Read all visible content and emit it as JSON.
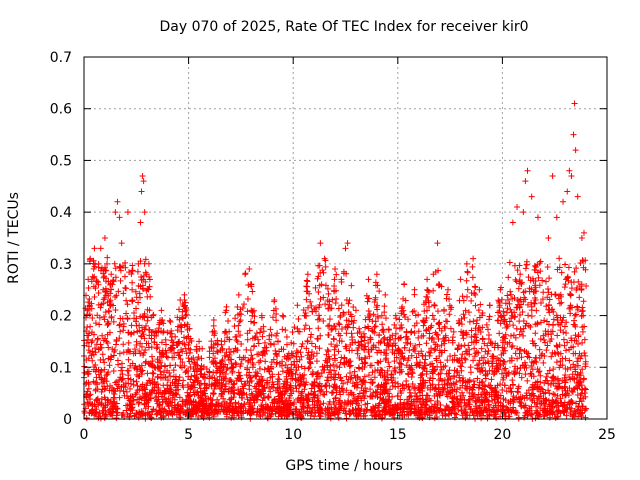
{
  "chart_data": {
    "type": "scatter",
    "title": "Day 070 of 2025, Rate Of TEC Index for receiver kir0",
    "xlabel": "GPS time / hours",
    "ylabel": "ROTI / TECUs",
    "xlim": [
      0,
      25
    ],
    "ylim": [
      0,
      0.7
    ],
    "xticks": [
      "0",
      "5",
      "10",
      "15",
      "20",
      "25"
    ],
    "yticks": [
      "0",
      "0.1",
      "0.2",
      "0.3",
      "0.4",
      "0.5",
      "0.6",
      "0.7"
    ],
    "grid": true,
    "marker": "+",
    "color": "#ff0000",
    "x_range_of_data": [
      0,
      24
    ],
    "points": [
      [
        0.0,
        0.08
      ],
      [
        0.1,
        0.17
      ],
      [
        0.2,
        0.27
      ],
      [
        0.3,
        0.31
      ],
      [
        0.5,
        0.33
      ],
      [
        0.7,
        0.3
      ],
      [
        0.8,
        0.33
      ],
      [
        1.0,
        0.35
      ],
      [
        1.1,
        0.3
      ],
      [
        1.3,
        0.28
      ],
      [
        1.5,
        0.4
      ],
      [
        1.6,
        0.42
      ],
      [
        1.7,
        0.39
      ],
      [
        1.8,
        0.34
      ],
      [
        2.1,
        0.4
      ],
      [
        2.3,
        0.25
      ],
      [
        2.6,
        0.3
      ],
      [
        2.7,
        0.38
      ],
      [
        2.75,
        0.44
      ],
      [
        2.8,
        0.47
      ],
      [
        2.85,
        0.46
      ],
      [
        2.9,
        0.4
      ],
      [
        3.0,
        0.28
      ],
      [
        3.3,
        0.2
      ],
      [
        3.7,
        0.21
      ],
      [
        4.1,
        0.19
      ],
      [
        4.6,
        0.23
      ],
      [
        4.8,
        0.24
      ],
      [
        5.5,
        0.15
      ],
      [
        6.2,
        0.18
      ],
      [
        6.8,
        0.21
      ],
      [
        7.4,
        0.24
      ],
      [
        7.7,
        0.28
      ],
      [
        7.9,
        0.29
      ],
      [
        8.5,
        0.2
      ],
      [
        9.1,
        0.23
      ],
      [
        9.5,
        0.2
      ],
      [
        10.2,
        0.22
      ],
      [
        10.7,
        0.28
      ],
      [
        11.3,
        0.34
      ],
      [
        11.5,
        0.31
      ],
      [
        12.0,
        0.29
      ],
      [
        12.3,
        0.27
      ],
      [
        12.5,
        0.33
      ],
      [
        12.6,
        0.34
      ],
      [
        13.0,
        0.21
      ],
      [
        13.6,
        0.27
      ],
      [
        14.0,
        0.28
      ],
      [
        14.4,
        0.24
      ],
      [
        14.9,
        0.2
      ],
      [
        15.3,
        0.26
      ],
      [
        15.8,
        0.25
      ],
      [
        16.4,
        0.27
      ],
      [
        16.7,
        0.28
      ],
      [
        16.9,
        0.34
      ],
      [
        17.4,
        0.25
      ],
      [
        18.0,
        0.27
      ],
      [
        18.3,
        0.3
      ],
      [
        18.6,
        0.31
      ],
      [
        18.9,
        0.25
      ],
      [
        19.4,
        0.22
      ],
      [
        19.9,
        0.25
      ],
      [
        20.5,
        0.38
      ],
      [
        20.7,
        0.41
      ],
      [
        21.0,
        0.4
      ],
      [
        21.1,
        0.46
      ],
      [
        21.2,
        0.48
      ],
      [
        21.4,
        0.43
      ],
      [
        21.7,
        0.39
      ],
      [
        22.2,
        0.35
      ],
      [
        22.4,
        0.47
      ],
      [
        22.6,
        0.39
      ],
      [
        22.9,
        0.42
      ],
      [
        23.1,
        0.44
      ],
      [
        23.2,
        0.48
      ],
      [
        23.3,
        0.47
      ],
      [
        23.4,
        0.55
      ],
      [
        23.45,
        0.61
      ],
      [
        23.5,
        0.52
      ],
      [
        23.6,
        0.43
      ],
      [
        23.8,
        0.35
      ],
      [
        23.9,
        0.36
      ],
      [
        24.0,
        0.02
      ]
    ]
  }
}
